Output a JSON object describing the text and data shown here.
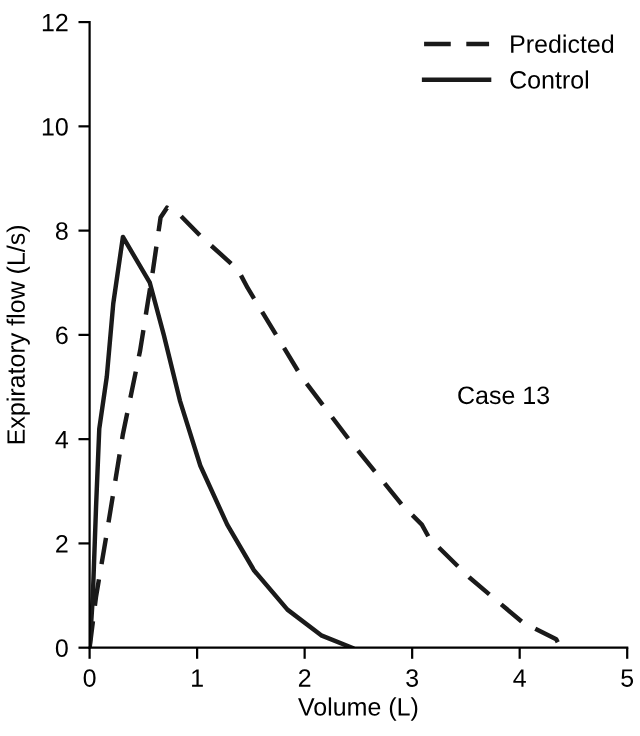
{
  "chart_data": {
    "type": "line",
    "xlabel": "Volume (L)",
    "ylabel": "Expiratory flow (L/s)",
    "xlim": [
      0,
      5
    ],
    "ylim": [
      0,
      12
    ],
    "xticks": [
      0,
      1,
      2,
      3,
      4,
      5
    ],
    "yticks": [
      0,
      2,
      4,
      6,
      8,
      10,
      12
    ],
    "grid": false,
    "legend": "top right",
    "marker": "none",
    "annotations": [
      "Case 13"
    ],
    "series": [
      {
        "name": "Predicted",
        "color": "#1a1a1a",
        "line_style": "dashed",
        "x": [
          0,
          0.06,
          0.16,
          0.31,
          0.47,
          0.59,
          0.66,
          0.72,
          0.84,
          1.03,
          1.38,
          1.47,
          1.97,
          2.41,
          2.91,
          3.09,
          3.16,
          3.53,
          4.03,
          4.34,
          4.38
        ],
        "values": [
          0,
          0.98,
          2.2,
          4.1,
          5.7,
          7.25,
          8.25,
          8.44,
          8.3,
          7.9,
          7.25,
          6.9,
          5.2,
          4.0,
          2.73,
          2.36,
          2.1,
          1.35,
          0.48,
          0.16,
          0
        ]
      },
      {
        "name": "Control",
        "color": "#1a1a1a",
        "line_style": "solid",
        "x": [
          0,
          0.03,
          0.06,
          0.09,
          0.16,
          0.22,
          0.31,
          0.56,
          0.69,
          0.84,
          1.03,
          1.28,
          1.53,
          1.84,
          2.16,
          2.44
        ],
        "values": [
          0,
          0.98,
          2.7,
          4.2,
          5.2,
          6.6,
          7.88,
          7.0,
          6.0,
          4.74,
          3.49,
          2.36,
          1.48,
          0.73,
          0.23,
          0
        ]
      }
    ]
  }
}
